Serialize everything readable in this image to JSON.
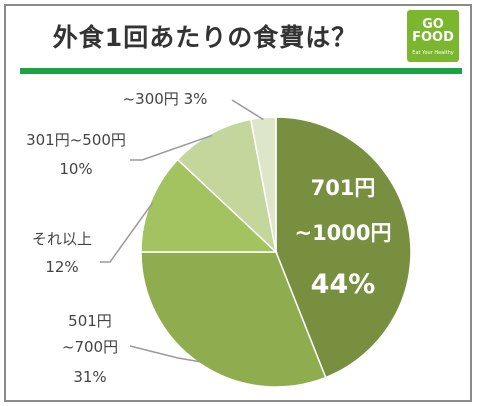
{
  "title": "外食1回あたりの食費は？",
  "logo": {
    "line1": "GO",
    "line2": "FOOD",
    "tagline": "Eat Your Healthy"
  },
  "colors": {
    "accent_rule": "#1aa345",
    "logo_bg": "#7ab72f"
  },
  "chart_data": {
    "type": "pie",
    "title": "外食1回あたりの食費は？",
    "unit": "%",
    "slices": [
      {
        "label_lines": [
          "701円",
          "~1000円"
        ],
        "pct_text": "44%",
        "value": 44,
        "color": "#778f3e",
        "inside": true
      },
      {
        "label_lines": [
          "501円",
          "~700円"
        ],
        "pct_text": "31%",
        "value": 31,
        "color": "#8fad4e"
      },
      {
        "label_lines": [
          "それ以上"
        ],
        "pct_text": "12%",
        "value": 12,
        "color": "#a3c260"
      },
      {
        "label_lines": [
          "301円~500円"
        ],
        "pct_text": "10%",
        "value": 10,
        "color": "#c3d69b"
      },
      {
        "label_lines": [
          "~300円 3%"
        ],
        "pct_text": "",
        "value": 3,
        "color": "#dde6c9"
      }
    ]
  }
}
